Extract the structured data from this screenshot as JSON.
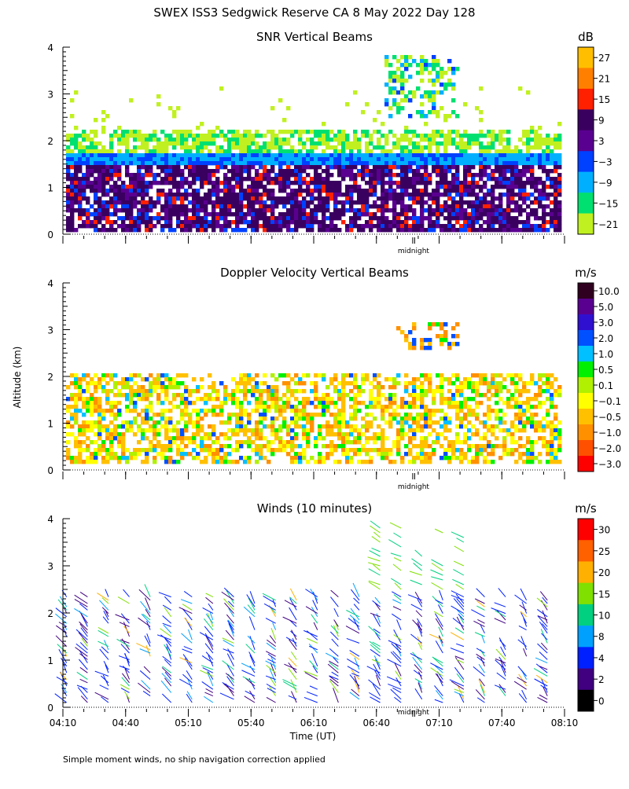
{
  "page": {
    "title": "SWEX ISS3 Sedgwick Reserve CA   8 May 2022 Day 128",
    "ylabel": "Altitude (km)",
    "xlabel": "Time (UT)",
    "footer": "Simple moment winds, no ship navigation correction applied",
    "midnight_label": "midnight"
  },
  "chart_data": [
    {
      "id": "snr",
      "type": "heatmap",
      "title": "SNR Vertical Beams",
      "unit": "dB",
      "ylim": [
        0,
        4
      ],
      "yticks": [
        "0",
        "1",
        "2",
        "3",
        "4"
      ],
      "time_range_hours": [
        4.1667,
        8.1667
      ],
      "midnight_hour": 7.0,
      "colorbar": {
        "labels": [
          "27",
          "21",
          "15",
          "9",
          "3",
          "−3",
          "−9",
          "−15",
          "−21"
        ],
        "colors": [
          "#ffbf00",
          "#ff8000",
          "#ff2000",
          "#3a0060",
          "#5a0090",
          "#0040ff",
          "#00b0ff",
          "#00e070",
          "#c0f020"
        ]
      },
      "layers": [
        {
          "band_km": [
            1.7,
            2.3
          ],
          "category": "-21 to -15 dB"
        },
        {
          "band_km": [
            1.5,
            1.8
          ],
          "category": "-9 dB"
        },
        {
          "band_km": [
            0.15,
            1.5
          ],
          "category": "3 to 15 dB"
        },
        {
          "band_km": [
            2.5,
            3.9
          ],
          "time_hours": [
            6.7,
            7.3
          ],
          "category": "-21 to -3 dB"
        }
      ]
    },
    {
      "id": "doppler",
      "type": "heatmap",
      "title": "Doppler Velocity Vertical Beams",
      "unit": "m/s",
      "ylim": [
        0,
        4
      ],
      "yticks": [
        "0",
        "1",
        "2",
        "3",
        "4"
      ],
      "time_range_hours": [
        4.1667,
        8.1667
      ],
      "midnight_hour": 7.0,
      "colorbar": {
        "labels": [
          "10.0",
          "5.0",
          "3.0",
          "2.0",
          "1.0",
          "0.5",
          "0.1",
          "−0.1",
          "−0.5",
          "−1.0",
          "−2.0",
          "−3.0"
        ],
        "colors": [
          "#300020",
          "#5a0090",
          "#3010d0",
          "#0050ff",
          "#00c0ff",
          "#00f000",
          "#b0f000",
          "#ffff00",
          "#ffc000",
          "#ff9000",
          "#ff5000",
          "#ff0000"
        ]
      },
      "layers": [
        {
          "band_km": [
            0.2,
            2.1
          ],
          "category": "-1.0 to 1.0 m/s"
        },
        {
          "band_km": [
            2.6,
            3.2
          ],
          "time_hours": [
            6.8,
            7.3
          ],
          "category": "-2.0 to 2.0 m/s"
        }
      ]
    },
    {
      "id": "winds",
      "type": "scatter",
      "title": "Winds (10 minutes)",
      "unit": "m/s",
      "ylim": [
        0,
        4
      ],
      "yticks": [
        "0",
        "1",
        "2",
        "3",
        "4"
      ],
      "xticks": [
        "04:10",
        "04:40",
        "05:10",
        "05:40",
        "06:10",
        "06:40",
        "07:10",
        "07:40",
        "08:10"
      ],
      "xtick_hours": [
        4.1667,
        4.6667,
        5.1667,
        5.6667,
        6.1667,
        6.6667,
        7.1667,
        7.6667,
        8.1667
      ],
      "time_range_hours": [
        4.1667,
        8.1667
      ],
      "midnight_hour": 7.0,
      "colorbar": {
        "labels": [
          "30",
          "25",
          "20",
          "15",
          "10",
          "8",
          "4",
          "2",
          "0"
        ],
        "colors": [
          "#ff0000",
          "#ff6000",
          "#ffb000",
          "#80e000",
          "#00d080",
          "#00a0ff",
          "#0020ff",
          "#400080",
          "#000000"
        ]
      },
      "profiles": {
        "interval_minutes": 10,
        "altitude_range_km": [
          0.1,
          2.4
        ],
        "typical_speed_ms": [
          2,
          10
        ],
        "upper_burst_km": [
          2.5,
          3.9
        ]
      }
    }
  ]
}
